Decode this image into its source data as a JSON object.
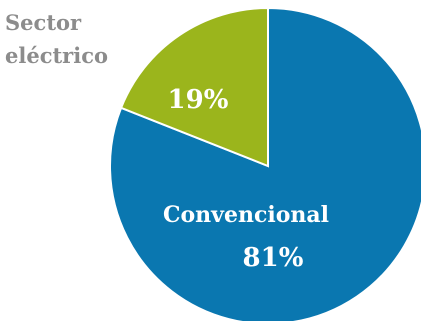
{
  "chart_data": {
    "type": "pie",
    "slices": [
      {
        "label": "Convencional",
        "value": 81,
        "display": "81%",
        "color": "#0a77b0"
      },
      {
        "label": "Sector eléctrico",
        "value": 19,
        "display": "19%",
        "color": "#9bb51c"
      }
    ],
    "title_lines": [
      "Sector",
      "eléctrico"
    ],
    "title_color": "#8c8c8c",
    "label_color": "#ffffff"
  }
}
